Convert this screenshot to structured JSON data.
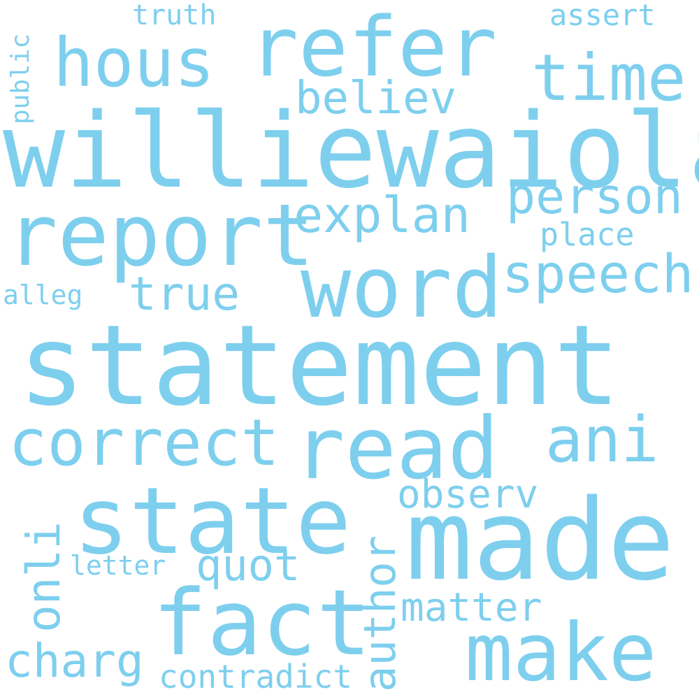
{
  "word_color": "#7ecfee",
  "background": "#ffffff",
  "words": [
    {
      "text": "statement"
    },
    {
      "text": "williewaiola"
    },
    {
      "text": "refer"
    },
    {
      "text": "hous"
    },
    {
      "text": "report"
    },
    {
      "text": "word"
    },
    {
      "text": "made"
    },
    {
      "text": "state"
    },
    {
      "text": "read"
    },
    {
      "text": "fact"
    },
    {
      "text": "make"
    },
    {
      "text": "correct"
    },
    {
      "text": "ani"
    },
    {
      "text": "time"
    },
    {
      "text": "person"
    },
    {
      "text": "speech"
    },
    {
      "text": "explan"
    },
    {
      "text": "believ"
    },
    {
      "text": "true"
    },
    {
      "text": "observ"
    },
    {
      "text": "quot"
    },
    {
      "text": "matter"
    },
    {
      "text": "charg"
    },
    {
      "text": "contradict"
    },
    {
      "text": "author"
    },
    {
      "text": "onli"
    },
    {
      "text": "letter"
    },
    {
      "text": "place"
    },
    {
      "text": "truth"
    },
    {
      "text": "assert"
    },
    {
      "text": "alleg"
    },
    {
      "text": "public"
    }
  ]
}
